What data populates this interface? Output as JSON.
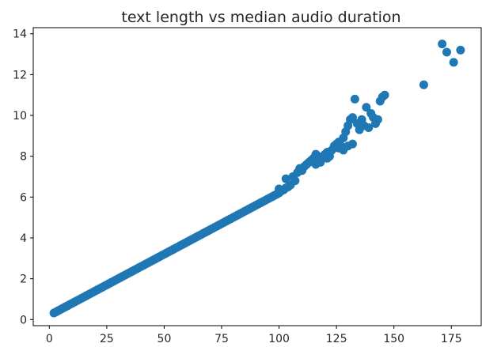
{
  "chart_data": {
    "type": "scatter",
    "title": "text length vs median audio duration",
    "xlabel": "",
    "ylabel": "",
    "xlim": [
      -7,
      188
    ],
    "ylim": [
      -0.3,
      14.3
    ],
    "xticks": [
      0,
      25,
      50,
      75,
      100,
      125,
      150,
      175
    ],
    "yticks": [
      0,
      2,
      4,
      6,
      8,
      10,
      12,
      14
    ],
    "grid": false,
    "color": "#1f77b4",
    "series": [
      {
        "points": [
          [
            2,
            0.32
          ],
          [
            3,
            0.38
          ],
          [
            4,
            0.44
          ],
          [
            5,
            0.5
          ],
          [
            6,
            0.56
          ],
          [
            7,
            0.62
          ],
          [
            8,
            0.68
          ],
          [
            9,
            0.74
          ],
          [
            10,
            0.8
          ],
          [
            11,
            0.86
          ],
          [
            12,
            0.92
          ],
          [
            13,
            0.98
          ],
          [
            14,
            1.04
          ],
          [
            15,
            1.1
          ],
          [
            16,
            1.16
          ],
          [
            17,
            1.22
          ],
          [
            18,
            1.28
          ],
          [
            19,
            1.34
          ],
          [
            20,
            1.4
          ],
          [
            21,
            1.46
          ],
          [
            22,
            1.52
          ],
          [
            23,
            1.58
          ],
          [
            24,
            1.64
          ],
          [
            25,
            1.7
          ],
          [
            26,
            1.76
          ],
          [
            27,
            1.82
          ],
          [
            28,
            1.88
          ],
          [
            29,
            1.94
          ],
          [
            30,
            2.0
          ],
          [
            31,
            2.06
          ],
          [
            32,
            2.12
          ],
          [
            33,
            2.18
          ],
          [
            34,
            2.24
          ],
          [
            35,
            2.3
          ],
          [
            36,
            2.36
          ],
          [
            37,
            2.42
          ],
          [
            38,
            2.48
          ],
          [
            39,
            2.54
          ],
          [
            40,
            2.6
          ],
          [
            41,
            2.66
          ],
          [
            42,
            2.72
          ],
          [
            43,
            2.78
          ],
          [
            44,
            2.84
          ],
          [
            45,
            2.9
          ],
          [
            46,
            2.96
          ],
          [
            47,
            3.02
          ],
          [
            48,
            3.08
          ],
          [
            49,
            3.14
          ],
          [
            50,
            3.2
          ],
          [
            51,
            3.26
          ],
          [
            52,
            3.32
          ],
          [
            53,
            3.38
          ],
          [
            54,
            3.44
          ],
          [
            55,
            3.5
          ],
          [
            56,
            3.56
          ],
          [
            57,
            3.62
          ],
          [
            58,
            3.68
          ],
          [
            59,
            3.74
          ],
          [
            60,
            3.8
          ],
          [
            61,
            3.86
          ],
          [
            62,
            3.92
          ],
          [
            63,
            3.98
          ],
          [
            64,
            4.04
          ],
          [
            65,
            4.1
          ],
          [
            66,
            4.16
          ],
          [
            67,
            4.22
          ],
          [
            68,
            4.28
          ],
          [
            69,
            4.34
          ],
          [
            70,
            4.4
          ],
          [
            71,
            4.46
          ],
          [
            72,
            4.52
          ],
          [
            73,
            4.58
          ],
          [
            74,
            4.64
          ],
          [
            75,
            4.7
          ],
          [
            76,
            4.76
          ],
          [
            77,
            4.82
          ],
          [
            78,
            4.88
          ],
          [
            79,
            4.94
          ],
          [
            80,
            5.0
          ],
          [
            81,
            5.06
          ],
          [
            82,
            5.12
          ],
          [
            83,
            5.18
          ],
          [
            84,
            5.24
          ],
          [
            85,
            5.3
          ],
          [
            86,
            5.36
          ],
          [
            87,
            5.42
          ],
          [
            88,
            5.48
          ],
          [
            89,
            5.54
          ],
          [
            90,
            5.6
          ],
          [
            91,
            5.66
          ],
          [
            92,
            5.72
          ],
          [
            93,
            5.78
          ],
          [
            94,
            5.84
          ],
          [
            95,
            5.9
          ],
          [
            96,
            5.96
          ],
          [
            97,
            6.02
          ],
          [
            98,
            6.08
          ],
          [
            99,
            6.14
          ],
          [
            100,
            6.2
          ],
          [
            101,
            6.3
          ],
          [
            102,
            6.35
          ],
          [
            103,
            6.45
          ],
          [
            104,
            6.5
          ],
          [
            105,
            6.6
          ],
          [
            100,
            6.4
          ],
          [
            103,
            6.9
          ],
          [
            106,
            7.0
          ],
          [
            107,
            6.8
          ],
          [
            108,
            7.2
          ],
          [
            109,
            7.4
          ],
          [
            110,
            7.3
          ],
          [
            111,
            7.5
          ],
          [
            112,
            7.6
          ],
          [
            113,
            7.7
          ],
          [
            114,
            7.8
          ],
          [
            115,
            7.9
          ],
          [
            116,
            8.1
          ],
          [
            117,
            8.0
          ],
          [
            118,
            7.8
          ],
          [
            119,
            7.9
          ],
          [
            120,
            8.1
          ],
          [
            121,
            8.2
          ],
          [
            122,
            8.0
          ],
          [
            123,
            8.3
          ],
          [
            124,
            8.5
          ],
          [
            125,
            8.6
          ],
          [
            126,
            8.7
          ],
          [
            127,
            8.5
          ],
          [
            128,
            8.9
          ],
          [
            129,
            9.2
          ],
          [
            130,
            9.5
          ],
          [
            131,
            9.8
          ],
          [
            132,
            9.9
          ],
          [
            133,
            10.8
          ],
          [
            134,
            9.6
          ],
          [
            135,
            9.3
          ],
          [
            136,
            9.8
          ],
          [
            137,
            9.5
          ],
          [
            138,
            10.4
          ],
          [
            139,
            9.4
          ],
          [
            140,
            10.1
          ],
          [
            141,
            9.9
          ],
          [
            142,
            9.6
          ],
          [
            143,
            9.8
          ],
          [
            144,
            10.7
          ],
          [
            145,
            10.9
          ],
          [
            146,
            11.0
          ],
          [
            126,
            8.4
          ],
          [
            128,
            8.3
          ],
          [
            130,
            8.5
          ],
          [
            132,
            8.6
          ],
          [
            121,
            7.9
          ],
          [
            118,
            7.7
          ],
          [
            116,
            7.6
          ],
          [
            163,
            11.5
          ],
          [
            171,
            13.5
          ],
          [
            173,
            13.1
          ],
          [
            176,
            12.6
          ],
          [
            179,
            13.2
          ]
        ]
      }
    ]
  }
}
